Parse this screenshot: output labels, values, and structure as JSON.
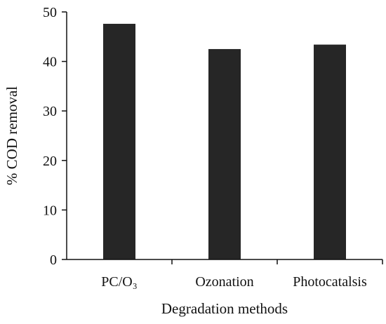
{
  "chart_data": {
    "type": "bar",
    "title": "",
    "xlabel": "Degradation methods",
    "ylabel": "% COD removal",
    "categories": [
      "PC/O₃",
      "Ozonation",
      "Photocatalsis"
    ],
    "values": [
      47.6,
      42.5,
      43.4
    ],
    "ylim": [
      0,
      50
    ],
    "yticks": [
      "0",
      "10",
      "20",
      "30",
      "40",
      "50"
    ],
    "grid": false,
    "legend": "none",
    "bar_color": "#262626"
  }
}
